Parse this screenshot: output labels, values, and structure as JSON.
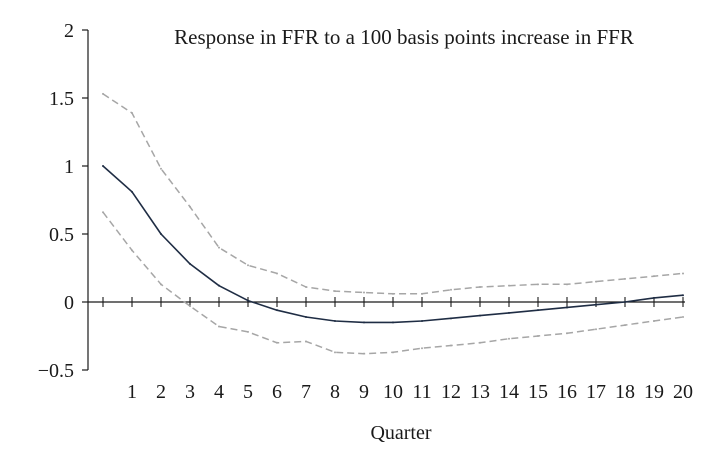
{
  "chart_data": {
    "type": "line",
    "title": "Response in FFR to a 100 basis points increase in FFR",
    "xlabel": "Quarter",
    "ylabel": "",
    "ylim": [
      -0.5,
      2
    ],
    "yticks": [
      2,
      1.5,
      1,
      0.5,
      0,
      -0.5
    ],
    "ytick_labels": [
      "2",
      "1.5",
      "1",
      "0.5",
      "0",
      "−0.5"
    ],
    "x": [
      0,
      1,
      2,
      3,
      4,
      5,
      6,
      7,
      8,
      9,
      10,
      11,
      12,
      13,
      14,
      15,
      16,
      17,
      18,
      19,
      20
    ],
    "xtick_labels": [
      "1",
      "2",
      "3",
      "4",
      "5",
      "6",
      "7",
      "8",
      "9",
      "10",
      "11",
      "12",
      "13",
      "14",
      "15",
      "16",
      "17",
      "18",
      "19",
      "20"
    ],
    "grid": false,
    "legend": "none",
    "series": [
      {
        "role": "response",
        "style": "solid",
        "color": "#1f2d44",
        "values": [
          1.0,
          0.81,
          0.5,
          0.28,
          0.12,
          0.01,
          -0.06,
          -0.11,
          -0.14,
          -0.15,
          -0.15,
          -0.14,
          -0.12,
          -0.1,
          -0.08,
          -0.06,
          -0.04,
          -0.02,
          0.0,
          0.03,
          0.05
        ]
      },
      {
        "role": "upper band",
        "style": "dashed",
        "color": "#a6a6a6",
        "values": [
          1.53,
          1.39,
          0.98,
          0.7,
          0.4,
          0.27,
          0.21,
          0.11,
          0.08,
          0.07,
          0.06,
          0.06,
          0.09,
          0.11,
          0.12,
          0.13,
          0.13,
          0.15,
          0.17,
          0.19,
          0.21
        ]
      },
      {
        "role": "lower band",
        "style": "dashed",
        "color": "#a6a6a6",
        "values": [
          0.66,
          0.38,
          0.13,
          -0.03,
          -0.18,
          -0.22,
          -0.3,
          -0.29,
          -0.37,
          -0.38,
          -0.37,
          -0.34,
          -0.32,
          -0.3,
          -0.27,
          -0.25,
          -0.23,
          -0.2,
          -0.17,
          -0.14,
          -0.11
        ]
      }
    ]
  }
}
